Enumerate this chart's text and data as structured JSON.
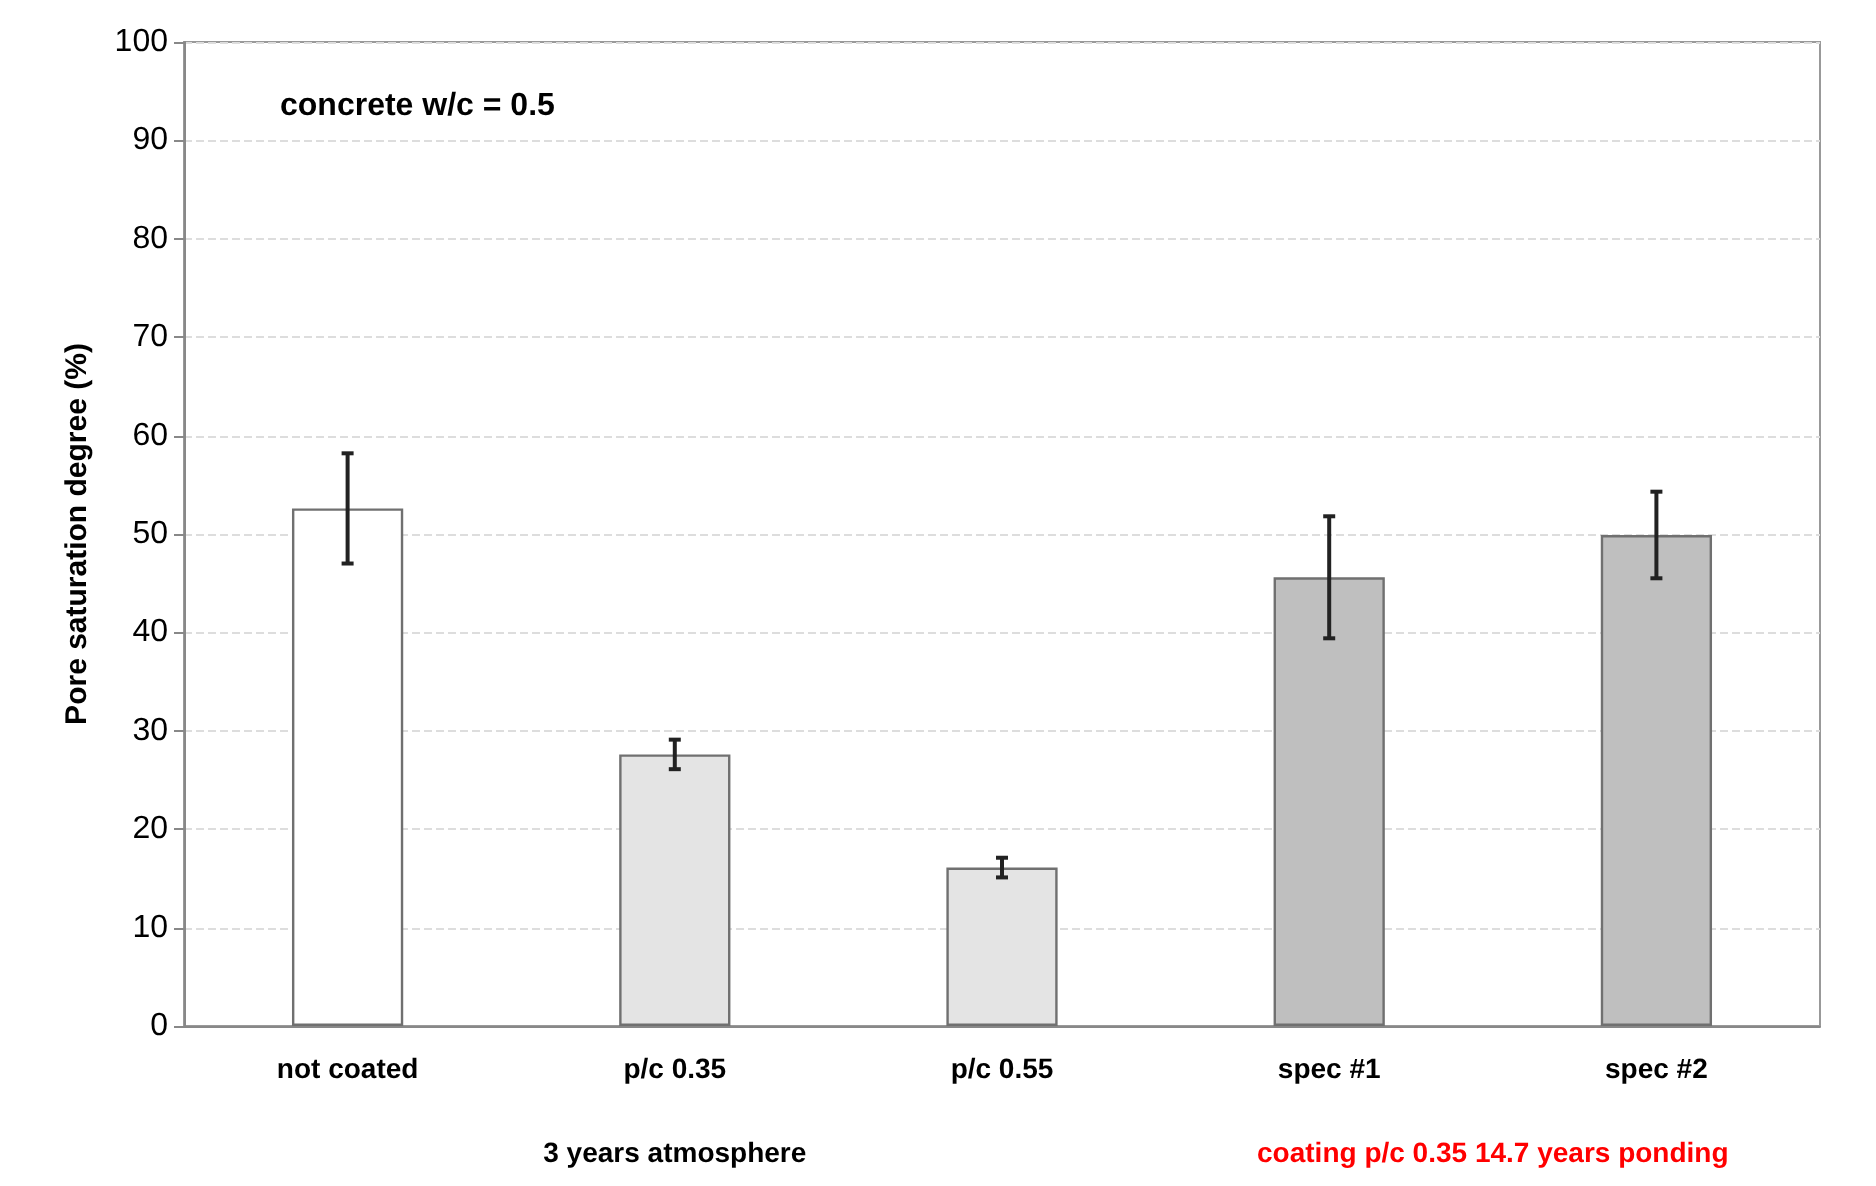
{
  "chart_data": {
    "type": "bar",
    "ylabel": "Pore saturation degree (%)",
    "categories": [
      "not coated",
      "p/c 0.35",
      "p/c 0.55",
      "spec #1",
      "spec #2"
    ],
    "values": [
      52.6,
      27.6,
      16.1,
      45.6,
      49.9
    ],
    "errors": [
      5.6,
      1.5,
      1.0,
      6.2,
      4.4
    ],
    "colors": [
      "#ffffff",
      "#e4e4e4",
      "#e4e4e4",
      "#bfbfbf",
      "#bfbfbf"
    ],
    "ylim": [
      0,
      100
    ],
    "yticks": [
      0,
      10,
      20,
      30,
      40,
      50,
      60,
      70,
      80,
      90,
      100
    ],
    "grid": "y",
    "annotations": [
      "concrete w/c = 0.5",
      "3 years atmosphere",
      "coating p/c 0.35 14.7 years ponding"
    ]
  }
}
